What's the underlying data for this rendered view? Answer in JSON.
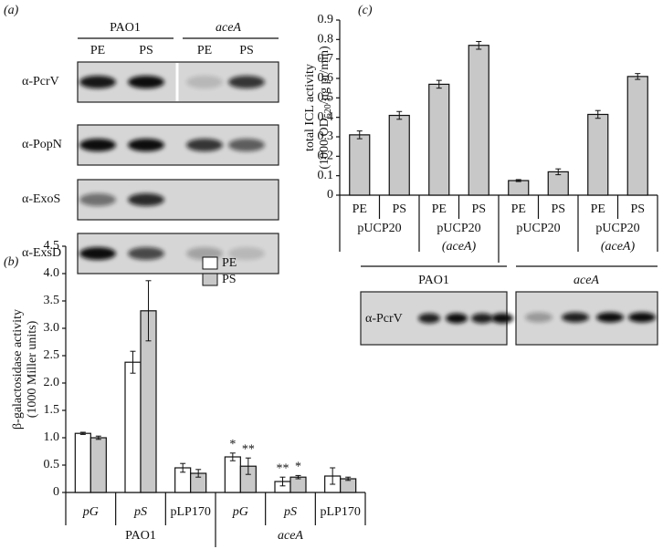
{
  "panel_labels": [
    "(a)",
    "(b)",
    "(c)"
  ],
  "blot_a": {
    "groups": [
      "PAO1",
      "aceA"
    ],
    "lanes": [
      "PE",
      "PS",
      "PE",
      "PS"
    ],
    "rows": [
      "α-PcrV",
      "α-PopN",
      "α-ExoS",
      "α-ExsD"
    ]
  },
  "blot_c": {
    "groups": [
      "PAO1",
      "aceA"
    ],
    "row": "α-PcrV"
  },
  "chart_data": [
    {
      "type": "bar",
      "y_label": [
        "β-galactosidase activity",
        "(1000 Miller units)"
      ],
      "categories": [
        "pG",
        "pS",
        "pLP170",
        "pG",
        "pS",
        "pLP170"
      ],
      "groups": [
        "PAO1",
        "aceA"
      ],
      "series": [
        {
          "name": "PE",
          "color": "#ffffff",
          "values": [
            1.08,
            2.38,
            0.45,
            0.65,
            0.2,
            0.3
          ],
          "errors": [
            0.02,
            0.2,
            0.08,
            0.07,
            0.08,
            0.15
          ]
        },
        {
          "name": "PS",
          "color": "#c8c8c8",
          "values": [
            1.0,
            3.32,
            0.35,
            0.48,
            0.28,
            0.25
          ],
          "errors": [
            0.03,
            0.55,
            0.07,
            0.15,
            0.03,
            0.03
          ]
        }
      ],
      "annotations": [
        "*",
        "**",
        "**",
        "*"
      ],
      "ylim": [
        0,
        4.5
      ],
      "yticks": [
        0,
        0.5,
        {
          "value": 1,
          "label": "1.0"
        },
        1.5,
        {
          "value": 2,
          "label": "2.0"
        },
        2.5,
        {
          "value": 3,
          "label": "3.0"
        },
        3.5,
        {
          "value": 4,
          "label": "4.0"
        },
        4.5
      ]
    },
    {
      "type": "bar",
      "y_label": [
        "total ICL activity",
        "(1000 OD",
        "520",
        "/μg pr/min)"
      ],
      "categories": [
        "PE",
        "PS",
        "PE",
        "PS",
        "PE",
        "PS",
        "PE",
        "PS"
      ],
      "plasmids": [
        [
          "pUCP20"
        ],
        [
          "pUCP20",
          "(aceA)"
        ],
        [
          "pUCP20"
        ],
        [
          "pUCP20",
          "(aceA)"
        ]
      ],
      "groups": [
        "PAO1",
        "aceA"
      ],
      "series": [
        {
          "color": "#c8c8c8",
          "values": [
            0.31,
            0.41,
            0.57,
            0.77,
            0.075,
            0.12,
            0.415,
            0.61
          ],
          "errors": [
            0.02,
            0.02,
            0.02,
            0.02,
            0.005,
            0.015,
            0.02,
            0.015
          ]
        }
      ],
      "ylim": [
        0,
        0.9
      ],
      "yticks": [
        0,
        0.1,
        0.2,
        0.3,
        0.4,
        0.5,
        0.6,
        0.7,
        0.8,
        0.9
      ]
    }
  ]
}
